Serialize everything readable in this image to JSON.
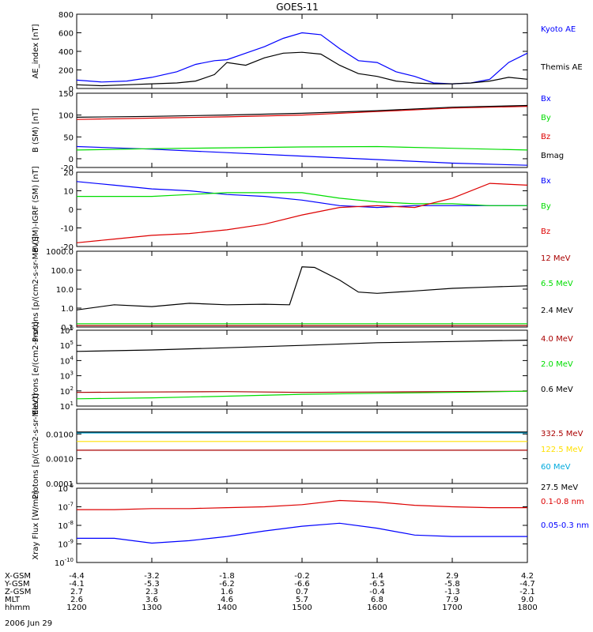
{
  "title": "GOES-11",
  "time_axis": {
    "rows": [
      {
        "label": "X-GSM",
        "values": [
          "-4.4",
          "-3.2",
          "-1.8",
          "-0.2",
          "1.4",
          "2.9",
          "4.2"
        ]
      },
      {
        "label": "Y-GSM",
        "values": [
          "-4.1",
          "-5.3",
          "-6.2",
          "-6.6",
          "-6.5",
          "-5.8",
          "-4.7"
        ]
      },
      {
        "label": "Z-GSM",
        "values": [
          "2.7",
          "2.3",
          "1.6",
          "0.7",
          "-0.4",
          "-1.3",
          "-2.1"
        ]
      },
      {
        "label": "MLT",
        "values": [
          "2.6",
          "3.6",
          "4.6",
          "5.7",
          "6.8",
          "7.9",
          "9.0"
        ]
      },
      {
        "label": "hhmm",
        "values": [
          "1200",
          "1300",
          "1400",
          "1500",
          "1600",
          "1700",
          "1800"
        ]
      }
    ],
    "date": "2006 Jun 29"
  },
  "chart_data": [
    {
      "type": "line",
      "ylabel": "AE_index [nT]",
      "ylim": [
        0,
        800
      ],
      "yticks": [
        "0",
        "200",
        "400",
        "600",
        "800"
      ],
      "x": [
        1200,
        1220,
        1240,
        1300,
        1320,
        1335,
        1350,
        1400,
        1415,
        1430,
        1445,
        1500,
        1515,
        1530,
        1545,
        1600,
        1615,
        1630,
        1645,
        1700,
        1715,
        1730,
        1745,
        1800
      ],
      "series": [
        {
          "name": "Kyoto AE",
          "color": "#0000ff",
          "values": [
            90,
            70,
            80,
            120,
            180,
            260,
            300,
            310,
            380,
            450,
            540,
            600,
            580,
            430,
            300,
            280,
            180,
            130,
            60,
            50,
            60,
            100,
            280,
            380
          ]
        },
        {
          "name": "Themis AE",
          "color": "#000000",
          "values": [
            40,
            30,
            40,
            50,
            60,
            80,
            150,
            280,
            250,
            330,
            380,
            390,
            370,
            250,
            160,
            130,
            80,
            60,
            50,
            50,
            60,
            80,
            120,
            100
          ]
        }
      ]
    },
    {
      "type": "line",
      "ylabel": "B (SM) [nT]",
      "ylim": [
        -20,
        150
      ],
      "yticks": [
        "-20",
        "0",
        "50",
        "100",
        "150"
      ],
      "x": [
        1200,
        1300,
        1400,
        1500,
        1600,
        1700,
        1800
      ],
      "series": [
        {
          "name": "Bx",
          "color": "#0000ff",
          "values": [
            28,
            22,
            14,
            6,
            -2,
            -10,
            -15
          ]
        },
        {
          "name": "By",
          "color": "#00dd00",
          "values": [
            20,
            23,
            25,
            27,
            28,
            24,
            20
          ]
        },
        {
          "name": "Bz",
          "color": "#dd0000",
          "values": [
            90,
            93,
            96,
            100,
            108,
            116,
            120
          ]
        },
        {
          "name": "Bmag",
          "color": "#000000",
          "values": [
            95,
            97,
            100,
            104,
            110,
            118,
            122
          ]
        }
      ]
    },
    {
      "type": "line",
      "ylabel": "B (SM)-IGRF (SM) [nT]",
      "ylim": [
        -20,
        20
      ],
      "yticks": [
        "-20",
        "-10",
        "0",
        "10",
        "20"
      ],
      "x": [
        1200,
        1230,
        1300,
        1330,
        1400,
        1430,
        1500,
        1530,
        1600,
        1630,
        1700,
        1730,
        1800
      ],
      "series": [
        {
          "name": "Bx",
          "color": "#0000ff",
          "values": [
            15,
            13,
            11,
            10,
            8,
            7,
            5,
            2,
            1,
            2,
            2,
            2,
            2
          ]
        },
        {
          "name": "By",
          "color": "#00dd00",
          "values": [
            7,
            7,
            7,
            8,
            9,
            9,
            9,
            6,
            4,
            3,
            3,
            2,
            2
          ]
        },
        {
          "name": "Bz",
          "color": "#dd0000",
          "values": [
            -18,
            -16,
            -14,
            -13,
            -11,
            -8,
            -3,
            1,
            2,
            1,
            6,
            14,
            13
          ]
        }
      ]
    },
    {
      "type": "line",
      "ylabel": "Protons [p/(cm2-s-sr-MeV)]",
      "yscale": "log",
      "ylim": [
        0.1,
        1000
      ],
      "yticks": [
        "0.1",
        "1.0",
        "10.0",
        "100.0",
        "1000.0"
      ],
      "x": [
        1200,
        1230,
        1300,
        1330,
        1400,
        1430,
        1450,
        1500,
        1510,
        1530,
        1545,
        1600,
        1630,
        1700,
        1730,
        1800
      ],
      "series": [
        {
          "name": "12 MeV",
          "color": "#aa0000",
          "values": [
            0.12,
            0.12,
            0.12,
            0.12,
            0.12,
            0.12,
            0.12,
            0.12,
            0.12,
            0.12,
            0.12,
            0.12,
            0.12,
            0.12,
            0.12,
            0.12
          ]
        },
        {
          "name": "6.5 MeV",
          "color": "#00dd00",
          "values": [
            0.15,
            0.15,
            0.15,
            0.15,
            0.15,
            0.15,
            0.15,
            0.15,
            0.15,
            0.15,
            0.15,
            0.15,
            0.15,
            0.15,
            0.15,
            0.15
          ]
        },
        {
          "name": "2.4 MeV",
          "color": "#000000",
          "values": [
            0.8,
            1.5,
            1.2,
            1.8,
            1.5,
            1.6,
            1.5,
            150,
            140,
            30,
            7,
            6,
            8,
            11,
            13,
            15
          ]
        }
      ]
    },
    {
      "type": "line",
      "ylabel": "Electrons [e/(cm2-s-sr)]",
      "yscale": "log",
      "ylim": [
        10,
        1000000
      ],
      "yticks": [
        "10^1",
        "10^2",
        "10^3",
        "10^4",
        "10^5",
        "10^6"
      ],
      "x": [
        1200,
        1300,
        1400,
        1500,
        1600,
        1700,
        1800
      ],
      "series": [
        {
          "name": "4.0 MeV",
          "color": "#aa0000",
          "values": [
            80,
            85,
            90,
            80,
            85,
            90,
            95
          ]
        },
        {
          "name": "2.0 MeV",
          "color": "#00dd00",
          "values": [
            30,
            35,
            45,
            60,
            70,
            80,
            95
          ]
        },
        {
          "name": "0.6 MeV",
          "color": "#000000",
          "values": [
            40000,
            50000,
            70000,
            100000,
            150000,
            180000,
            220000
          ]
        }
      ]
    },
    {
      "type": "line",
      "ylabel": "Protons [p/(cm2-s-sr-MeV)]",
      "yscale": "log",
      "ylim": [
        0.0001,
        0.1
      ],
      "yticks": [
        "0.0001",
        "0.0010",
        "0.0100"
      ],
      "x": [
        1200,
        1300,
        1400,
        1500,
        1600,
        1700,
        1800
      ],
      "series": [
        {
          "name": "332.5 MeV",
          "color": "#aa0000",
          "values": [
            0.0022,
            0.0022,
            0.0022,
            0.0022,
            0.0022,
            0.0022,
            0.0022
          ]
        },
        {
          "name": "122.5 MeV",
          "color": "#ffe000",
          "values": [
            0.005,
            0.005,
            0.005,
            0.005,
            0.005,
            0.005,
            0.005
          ]
        },
        {
          "name": "60 MeV",
          "color": "#00aadd",
          "values": [
            0.011,
            0.011,
            0.011,
            0.011,
            0.011,
            0.011,
            0.011
          ]
        },
        {
          "name": "27.5 MeV",
          "color": "#000000",
          "values": [
            0.012,
            0.012,
            0.012,
            0.012,
            0.012,
            0.012,
            0.012
          ]
        }
      ]
    },
    {
      "type": "line",
      "ylabel": "Xray Flux [W/m2]",
      "yscale": "log",
      "ylim": [
        1e-10,
        1e-06
      ],
      "yticks": [
        "10^-10",
        "10^-9",
        "10^-8",
        "10^-7",
        "10^-6"
      ],
      "x": [
        1200,
        1230,
        1300,
        1330,
        1400,
        1430,
        1500,
        1530,
        1600,
        1630,
        1700,
        1730,
        1800
      ],
      "series": [
        {
          "name": "0.1-0.8 nm",
          "color": "#dd0000",
          "values": [
            7e-08,
            7e-08,
            8e-08,
            8e-08,
            9e-08,
            1e-07,
            1.3e-07,
            2.2e-07,
            1.8e-07,
            1.2e-07,
            1e-07,
            9e-08,
            9e-08
          ]
        },
        {
          "name": "0.05-0.3 nm",
          "color": "#0000ff",
          "values": [
            2e-09,
            2e-09,
            1.1e-09,
            1.5e-09,
            2.5e-09,
            5e-09,
            9e-09,
            1.3e-08,
            7e-09,
            3e-09,
            2.5e-09,
            2.5e-09,
            2.5e-09
          ]
        }
      ]
    }
  ]
}
